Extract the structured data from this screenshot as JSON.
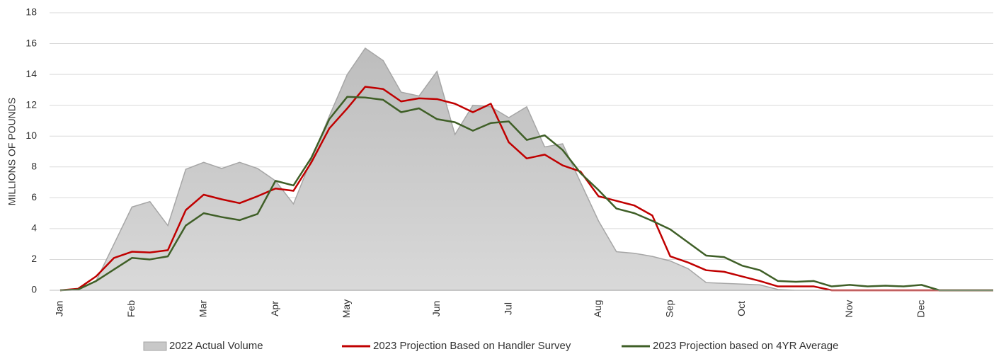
{
  "chart_data": {
    "type": "line",
    "y_label": "MILLIONS OF POUNDS",
    "categories": [
      "Jan",
      null,
      null,
      null,
      "Feb",
      null,
      null,
      null,
      "Mar",
      null,
      null,
      null,
      "Apr",
      null,
      null,
      null,
      "May",
      null,
      null,
      null,
      null,
      "Jun",
      null,
      null,
      null,
      "Jul",
      null,
      null,
      null,
      null,
      "Aug",
      null,
      null,
      null,
      "Sep",
      null,
      null,
      null,
      "Oct",
      null,
      null,
      null,
      null,
      null,
      "Nov",
      null,
      null,
      null,
      "Dec",
      null,
      null,
      null,
      null
    ],
    "series": [
      {
        "name": "2022 Actual Volume",
        "style": "area",
        "color": "#c8c8c8",
        "values": [
          0,
          0.1,
          0.6,
          3.0,
          5.4,
          5.75,
          4.2,
          7.85,
          8.3,
          7.9,
          8.3,
          7.9,
          7.1,
          5.6,
          8.5,
          11.3,
          14.0,
          15.7,
          14.9,
          12.85,
          12.6,
          14.2,
          10.1,
          12.0,
          11.9,
          11.2,
          11.9,
          9.3,
          9.5,
          7.0,
          4.5,
          2.5,
          2.4,
          2.2,
          1.9,
          1.4,
          0.5,
          0.45,
          0.4,
          0.35,
          0.05,
          0,
          0,
          0,
          0,
          0,
          0,
          0,
          0,
          0,
          0,
          0,
          0
        ]
      },
      {
        "name": "2023 Projection Based on Handler Survey",
        "style": "line",
        "color": "#c00000",
        "values": [
          0,
          0.1,
          0.9,
          2.1,
          2.5,
          2.45,
          2.6,
          5.2,
          6.2,
          5.9,
          5.65,
          6.1,
          6.6,
          6.45,
          8.3,
          10.5,
          11.8,
          13.2,
          13.05,
          12.25,
          12.45,
          12.4,
          12.1,
          11.55,
          12.1,
          9.6,
          8.55,
          8.8,
          8.1,
          7.7,
          6.1,
          5.8,
          5.5,
          4.85,
          2.2,
          1.8,
          1.3,
          1.2,
          0.9,
          0.6,
          0.25,
          0.25,
          0.25,
          0,
          0,
          0,
          0,
          0,
          0,
          0,
          0,
          0,
          0
        ]
      },
      {
        "name": "2023 Projection based on 4YR Average",
        "style": "line",
        "color": "#3f5f27",
        "values": [
          0,
          0.05,
          0.6,
          1.35,
          2.1,
          2.0,
          2.2,
          4.2,
          5.0,
          4.75,
          4.55,
          4.95,
          7.1,
          6.8,
          8.6,
          11.1,
          12.55,
          12.5,
          12.35,
          11.55,
          11.8,
          11.1,
          10.9,
          10.35,
          10.85,
          10.95,
          9.75,
          10.05,
          9.1,
          7.6,
          6.5,
          5.3,
          5.0,
          4.5,
          3.95,
          3.1,
          2.25,
          2.15,
          1.6,
          1.3,
          0.6,
          0.55,
          0.6,
          0.25,
          0.35,
          0.25,
          0.3,
          0.25,
          0.35,
          0,
          0,
          0,
          0
        ]
      }
    ],
    "ylim": [
      0,
      18
    ],
    "yticks": [
      0,
      2,
      4,
      6,
      8,
      10,
      12,
      14,
      16,
      18
    ],
    "grid": true,
    "legend": "bottom"
  }
}
